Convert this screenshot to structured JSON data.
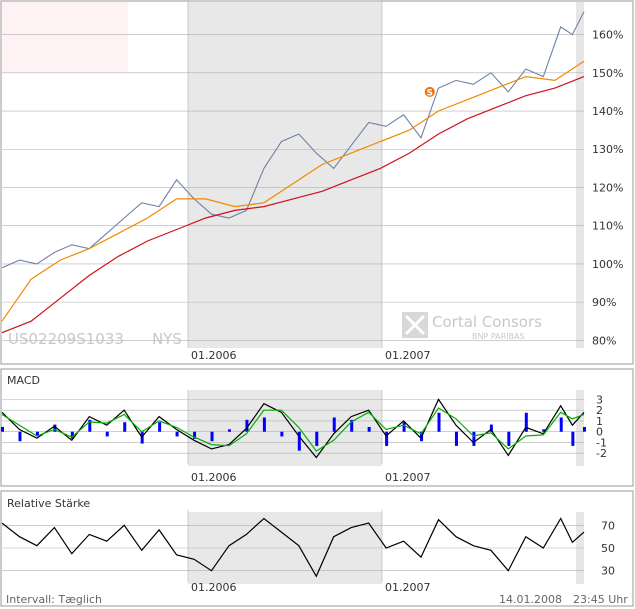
{
  "footer": {
    "interval_label": "Intervall: Tæglich",
    "date": "14.01.2008",
    "time": "23:45 Uhr"
  },
  "watermark": {
    "isin": "US02209S1033",
    "exchange": "NYS",
    "brand_line1": "Cortal Consors",
    "brand_line2": "BNP PARIBAS",
    "logo_icon": "cortal-consors-logo-icon",
    "event_icon": "split-marker-icon",
    "event_marker_label": "S"
  },
  "colors": {
    "price_line": "#7080a8",
    "ma_fast": "#f08a00",
    "ma_slow": "#d0101a",
    "macd_line": "#000000",
    "macd_signal": "#00b000",
    "macd_histogram": "#0000ff",
    "rsi_line": "#000000",
    "shade": "#e8e8e8",
    "grid": "#b0b0b0",
    "border": "#999999"
  },
  "chart_data": [
    {
      "type": "line",
      "title": "",
      "subtitle": "",
      "xlabel": "",
      "ylabel": "",
      "x_ticks": [
        "01.2006",
        "01.2007"
      ],
      "y_ticks": [
        "80%",
        "90%",
        "100%",
        "110%",
        "120%",
        "130%",
        "140%",
        "150%",
        "160%"
      ],
      "ylim": [
        78,
        168
      ],
      "grid": true,
      "shaded_period": [
        "01.2006",
        "01.2007"
      ],
      "event_marker": {
        "x": 0.735,
        "y": 145,
        "label": "S"
      },
      "series": [
        {
          "name": "",
          "role": "price",
          "x": [
            0,
            0.03,
            0.06,
            0.09,
            0.12,
            0.15,
            0.18,
            0.21,
            0.24,
            0.27,
            0.3,
            0.33,
            0.36,
            0.39,
            0.42,
            0.45,
            0.48,
            0.51,
            0.54,
            0.57,
            0.6,
            0.63,
            0.66,
            0.69,
            0.72,
            0.75,
            0.78,
            0.81,
            0.84,
            0.87,
            0.9,
            0.93,
            0.96,
            0.98,
            1.0
          ],
          "values": [
            99,
            101,
            100,
            103,
            105,
            104,
            108,
            112,
            116,
            115,
            122,
            117,
            113,
            112,
            114,
            125,
            132,
            134,
            129,
            125,
            131,
            137,
            136,
            139,
            133,
            146,
            148,
            147,
            150,
            145,
            151,
            149,
            162,
            160,
            166
          ]
        },
        {
          "name": "",
          "role": "moving_average_fast",
          "x": [
            0,
            0.05,
            0.1,
            0.15,
            0.2,
            0.25,
            0.3,
            0.35,
            0.4,
            0.45,
            0.5,
            0.55,
            0.6,
            0.65,
            0.7,
            0.75,
            0.8,
            0.85,
            0.9,
            0.95,
            1.0
          ],
          "values": [
            85,
            96,
            101,
            104,
            108,
            112,
            117,
            117,
            115,
            116,
            121,
            126,
            129,
            132,
            135,
            140,
            143,
            146,
            149,
            148,
            153
          ]
        },
        {
          "name": "",
          "role": "moving_average_slow",
          "x": [
            0,
            0.05,
            0.1,
            0.15,
            0.2,
            0.25,
            0.3,
            0.35,
            0.4,
            0.45,
            0.5,
            0.55,
            0.6,
            0.65,
            0.7,
            0.75,
            0.8,
            0.85,
            0.9,
            0.95,
            1.0
          ],
          "values": [
            82,
            85,
            91,
            97,
            102,
            106,
            109,
            112,
            114,
            115,
            117,
            119,
            122,
            125,
            129,
            134,
            138,
            141,
            144,
            146,
            149
          ]
        }
      ]
    },
    {
      "type": "line",
      "title": "MACD",
      "x_ticks": [
        "01.2006",
        "01.2007"
      ],
      "y_ticks": [
        "3",
        "2",
        "1",
        "0",
        "-1",
        "-2"
      ],
      "ylim": [
        -3,
        3.5
      ],
      "grid": true,
      "shaded_period": [
        "01.2006",
        "01.2007"
      ],
      "series": [
        {
          "name": "",
          "role": "macd",
          "x": [
            0,
            0.03,
            0.06,
            0.09,
            0.12,
            0.15,
            0.18,
            0.21,
            0.24,
            0.27,
            0.3,
            0.33,
            0.36,
            0.39,
            0.42,
            0.45,
            0.48,
            0.51,
            0.54,
            0.57,
            0.6,
            0.63,
            0.66,
            0.69,
            0.72,
            0.75,
            0.78,
            0.81,
            0.84,
            0.87,
            0.9,
            0.93,
            0.96,
            0.98,
            1.0
          ],
          "values": [
            1.8,
            0.2,
            -0.6,
            0.5,
            -0.8,
            1.4,
            0.6,
            2.0,
            -0.5,
            1.4,
            0.2,
            -0.8,
            -1.6,
            -1.2,
            0.3,
            2.6,
            1.8,
            -0.4,
            -2.4,
            -0.2,
            1.4,
            2.0,
            -0.4,
            1.0,
            -0.6,
            3.0,
            0.6,
            -1.0,
            0.2,
            -2.2,
            0.4,
            -0.2,
            2.4,
            0.6,
            1.8
          ]
        },
        {
          "name": "",
          "role": "signal",
          "x": [
            0,
            0.03,
            0.06,
            0.09,
            0.12,
            0.15,
            0.18,
            0.21,
            0.24,
            0.27,
            0.3,
            0.33,
            0.36,
            0.39,
            0.42,
            0.45,
            0.48,
            0.51,
            0.54,
            0.57,
            0.6,
            0.63,
            0.66,
            0.69,
            0.72,
            0.75,
            0.78,
            0.81,
            0.84,
            0.87,
            0.9,
            0.93,
            0.96,
            0.98,
            1.0
          ],
          "values": [
            1.6,
            0.6,
            -0.4,
            0.2,
            -0.5,
            0.9,
            0.8,
            1.6,
            0.0,
            1.0,
            0.4,
            -0.5,
            -1.2,
            -1.3,
            -0.2,
            2.0,
            2.0,
            0.4,
            -1.8,
            -0.8,
            0.9,
            1.8,
            0.2,
            0.6,
            -0.2,
            2.2,
            1.2,
            -0.4,
            -0.1,
            -1.6,
            -0.4,
            -0.3,
            1.8,
            1.2,
            1.6
          ]
        }
      ]
    },
    {
      "type": "line",
      "title": "Relative Stärke",
      "x_ticks": [
        "01.2006",
        "01.2007"
      ],
      "y_ticks": [
        "70",
        "50",
        "30"
      ],
      "ylim": [
        20,
        80
      ],
      "grid": true,
      "shaded_period": [
        "01.2006",
        "01.2007"
      ],
      "series": [
        {
          "name": "",
          "role": "rsi",
          "x": [
            0,
            0.03,
            0.06,
            0.09,
            0.12,
            0.15,
            0.18,
            0.21,
            0.24,
            0.27,
            0.3,
            0.33,
            0.36,
            0.39,
            0.42,
            0.45,
            0.48,
            0.51,
            0.54,
            0.57,
            0.6,
            0.63,
            0.66,
            0.69,
            0.72,
            0.75,
            0.78,
            0.81,
            0.84,
            0.87,
            0.9,
            0.93,
            0.96,
            0.98,
            1.0
          ],
          "values": [
            72,
            60,
            52,
            68,
            45,
            62,
            56,
            70,
            48,
            66,
            44,
            40,
            30,
            52,
            62,
            76,
            64,
            52,
            25,
            60,
            68,
            72,
            50,
            56,
            42,
            75,
            60,
            52,
            48,
            30,
            60,
            50,
            76,
            55,
            64
          ]
        }
      ]
    }
  ]
}
